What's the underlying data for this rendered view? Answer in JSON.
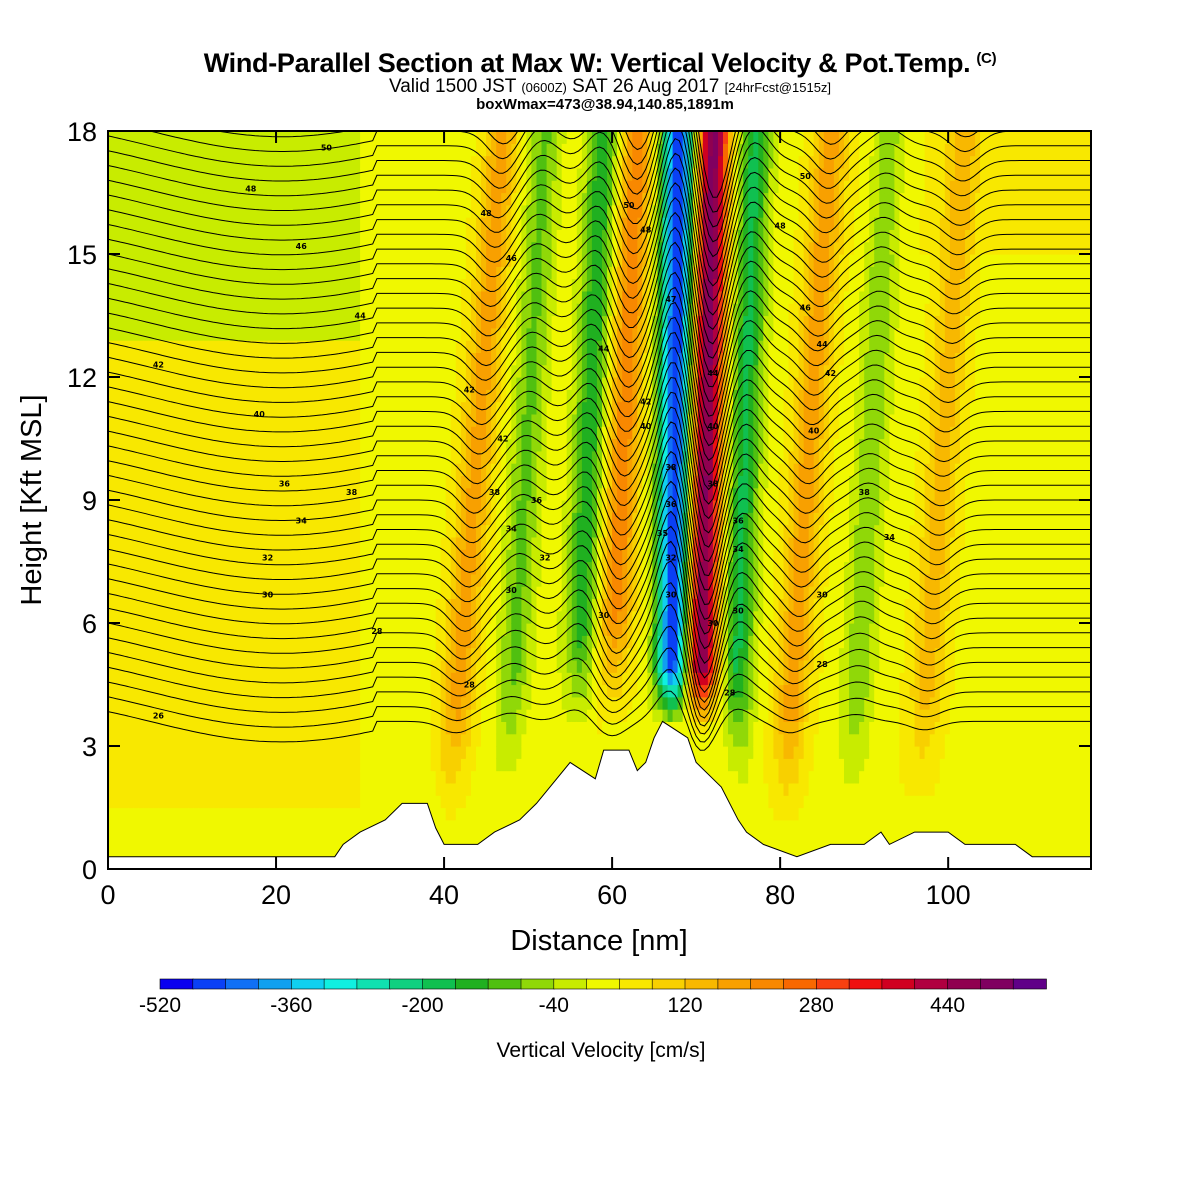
{
  "title": {
    "main": "Wind-Parallel Section at Max W: Vertical Velocity & Pot.Temp.",
    "copyright": "(C)",
    "valid_prefix": "Valid 1500 JST",
    "zulu": "(0600Z)",
    "valid_date": "SAT 26 Aug 2017",
    "forecast": "[24hrFcst@1515z]",
    "boxmax": "boxWmax=473@38.94,140.85,1891m"
  },
  "colorbar_label": "Vertical Velocity [cm/s]",
  "chart_data": {
    "type": "heatmap",
    "title": "Wind-Parallel Section at Max W: Vertical Velocity & Pot.Temp.",
    "xlabel": "Distance [nm]",
    "ylabel": "Height [Kft MSL]",
    "xlim": [
      0,
      117
    ],
    "ylim": [
      0,
      18
    ],
    "x_ticks": [
      0,
      20,
      40,
      60,
      80,
      100
    ],
    "y_ticks": [
      0,
      3,
      6,
      9,
      12,
      15,
      18
    ],
    "colorbar": {
      "label": "Vertical Velocity [cm/s]",
      "min": -520,
      "max": 560,
      "step": 40,
      "ticks": [
        -520,
        -360,
        -200,
        -40,
        120,
        280,
        440
      ],
      "colors": [
        "#0a00f0",
        "#0a40f5",
        "#1070f5",
        "#10a0f0",
        "#10d0f0",
        "#10f0e0",
        "#10e0b0",
        "#10d080",
        "#10c050",
        "#20b020",
        "#50c010",
        "#90d808",
        "#c8ec00",
        "#f0f800",
        "#f8e800",
        "#f8d000",
        "#f8b800",
        "#f8a000",
        "#f88800",
        "#f86800",
        "#f84010",
        "#f01010",
        "#d00020",
        "#b00040",
        "#900050",
        "#800060",
        "#600088"
      ]
    },
    "terrain_kft": [
      [
        0,
        0.3
      ],
      [
        27,
        0.3
      ],
      [
        28,
        0.6
      ],
      [
        30,
        0.9
      ],
      [
        33,
        1.2
      ],
      [
        35,
        1.6
      ],
      [
        38,
        1.6
      ],
      [
        39,
        1.0
      ],
      [
        40,
        0.6
      ],
      [
        44,
        0.6
      ],
      [
        46,
        0.9
      ],
      [
        49,
        1.2
      ],
      [
        51,
        1.6
      ],
      [
        53,
        2.1
      ],
      [
        55,
        2.6
      ],
      [
        58,
        2.2
      ],
      [
        59,
        2.9
      ],
      [
        62,
        2.9
      ],
      [
        63,
        2.4
      ],
      [
        64,
        2.6
      ],
      [
        65,
        3.2
      ],
      [
        66,
        3.6
      ],
      [
        69,
        3.2
      ],
      [
        70,
        2.6
      ],
      [
        72,
        2.2
      ],
      [
        73,
        2.0
      ],
      [
        75,
        1.2
      ],
      [
        76,
        0.9
      ],
      [
        78,
        0.6
      ],
      [
        82,
        0.3
      ],
      [
        86,
        0.6
      ],
      [
        90,
        0.6
      ],
      [
        92,
        0.9
      ],
      [
        93,
        0.6
      ],
      [
        96,
        0.9
      ],
      [
        100,
        0.9
      ],
      [
        102,
        0.6
      ],
      [
        108,
        0.6
      ],
      [
        110,
        0.3
      ],
      [
        117,
        0.3
      ]
    ],
    "updraft_bands": [
      {
        "x_top": 72,
        "x_bottom": 70,
        "w_max": 473
      },
      {
        "x_top": 63,
        "x_bottom": 59,
        "w_max": 200
      },
      {
        "x_top": 47,
        "x_bottom": 40,
        "w_max": 150
      },
      {
        "x_top": 86,
        "x_bottom": 80,
        "w_max": 150
      },
      {
        "x_top": 102,
        "x_bottom": 96,
        "w_max": 110
      }
    ],
    "downdraft_bands": [
      {
        "x_top": 68,
        "x_bottom": 67,
        "w_min": -520
      },
      {
        "x_top": 59,
        "x_bottom": 55,
        "w_min": -180
      },
      {
        "x_top": 77,
        "x_bottom": 74,
        "w_min": -200
      },
      {
        "x_top": 52,
        "x_bottom": 47,
        "w_min": -120
      },
      {
        "x_top": 93,
        "x_bottom": 88,
        "w_min": -100
      }
    ],
    "theta_contours_K": [
      26,
      28,
      30,
      32,
      34,
      36,
      38,
      40,
      42,
      44,
      46,
      48,
      50
    ],
    "theta_labels": [
      {
        "x": 6,
        "y": 3.75,
        "text": "26"
      },
      {
        "x": 32,
        "y": 5.8,
        "text": "28"
      },
      {
        "x": 43,
        "y": 4.5,
        "text": "28"
      },
      {
        "x": 19,
        "y": 6.7,
        "text": "30"
      },
      {
        "x": 19,
        "y": 7.6,
        "text": "32"
      },
      {
        "x": 23,
        "y": 8.5,
        "text": "34"
      },
      {
        "x": 21,
        "y": 9.4,
        "text": "36"
      },
      {
        "x": 29,
        "y": 9.2,
        "text": "38"
      },
      {
        "x": 18,
        "y": 11.1,
        "text": "40"
      },
      {
        "x": 6,
        "y": 12.3,
        "text": "42"
      },
      {
        "x": 30,
        "y": 13.5,
        "text": "44"
      },
      {
        "x": 23,
        "y": 15.2,
        "text": "46"
      },
      {
        "x": 17,
        "y": 16.6,
        "text": "48"
      },
      {
        "x": 26,
        "y": 17.6,
        "text": "50"
      },
      {
        "x": 83,
        "y": 16.9,
        "text": "50"
      },
      {
        "x": 80,
        "y": 15.7,
        "text": "48"
      },
      {
        "x": 83,
        "y": 13.7,
        "text": "46"
      },
      {
        "x": 85,
        "y": 12.8,
        "text": "44"
      },
      {
        "x": 86,
        "y": 12.1,
        "text": "42"
      },
      {
        "x": 84,
        "y": 10.7,
        "text": "40"
      },
      {
        "x": 90,
        "y": 9.2,
        "text": "38"
      },
      {
        "x": 93,
        "y": 8.1,
        "text": "34"
      },
      {
        "x": 85,
        "y": 6.7,
        "text": "30"
      },
      {
        "x": 85,
        "y": 5.0,
        "text": "28"
      },
      {
        "x": 45,
        "y": 16.0,
        "text": "48"
      },
      {
        "x": 62,
        "y": 16.2,
        "text": "50"
      },
      {
        "x": 64,
        "y": 15.6,
        "text": "48"
      },
      {
        "x": 48,
        "y": 14.9,
        "text": "46"
      },
      {
        "x": 67,
        "y": 13.9,
        "text": "47"
      },
      {
        "x": 59,
        "y": 12.7,
        "text": "44"
      },
      {
        "x": 72,
        "y": 12.1,
        "text": "44"
      },
      {
        "x": 43,
        "y": 11.7,
        "text": "42"
      },
      {
        "x": 64,
        "y": 11.4,
        "text": "42"
      },
      {
        "x": 64,
        "y": 10.8,
        "text": "40"
      },
      {
        "x": 72,
        "y": 10.8,
        "text": "40"
      },
      {
        "x": 47,
        "y": 10.5,
        "text": "42"
      },
      {
        "x": 67,
        "y": 9.8,
        "text": "38"
      },
      {
        "x": 72,
        "y": 9.4,
        "text": "38"
      },
      {
        "x": 46,
        "y": 9.2,
        "text": "38"
      },
      {
        "x": 51,
        "y": 9.0,
        "text": "36"
      },
      {
        "x": 67,
        "y": 8.9,
        "text": "36"
      },
      {
        "x": 75,
        "y": 8.5,
        "text": "36"
      },
      {
        "x": 48,
        "y": 8.3,
        "text": "34"
      },
      {
        "x": 66,
        "y": 8.2,
        "text": "35"
      },
      {
        "x": 75,
        "y": 7.8,
        "text": "34"
      },
      {
        "x": 67,
        "y": 7.6,
        "text": "32"
      },
      {
        "x": 52,
        "y": 7.6,
        "text": "32"
      },
      {
        "x": 48,
        "y": 6.8,
        "text": "30"
      },
      {
        "x": 67,
        "y": 6.7,
        "text": "30"
      },
      {
        "x": 59,
        "y": 6.2,
        "text": "30"
      },
      {
        "x": 75,
        "y": 6.3,
        "text": "30"
      },
      {
        "x": 72,
        "y": 6.0,
        "text": "30"
      },
      {
        "x": 74,
        "y": 4.3,
        "text": "28"
      }
    ]
  }
}
